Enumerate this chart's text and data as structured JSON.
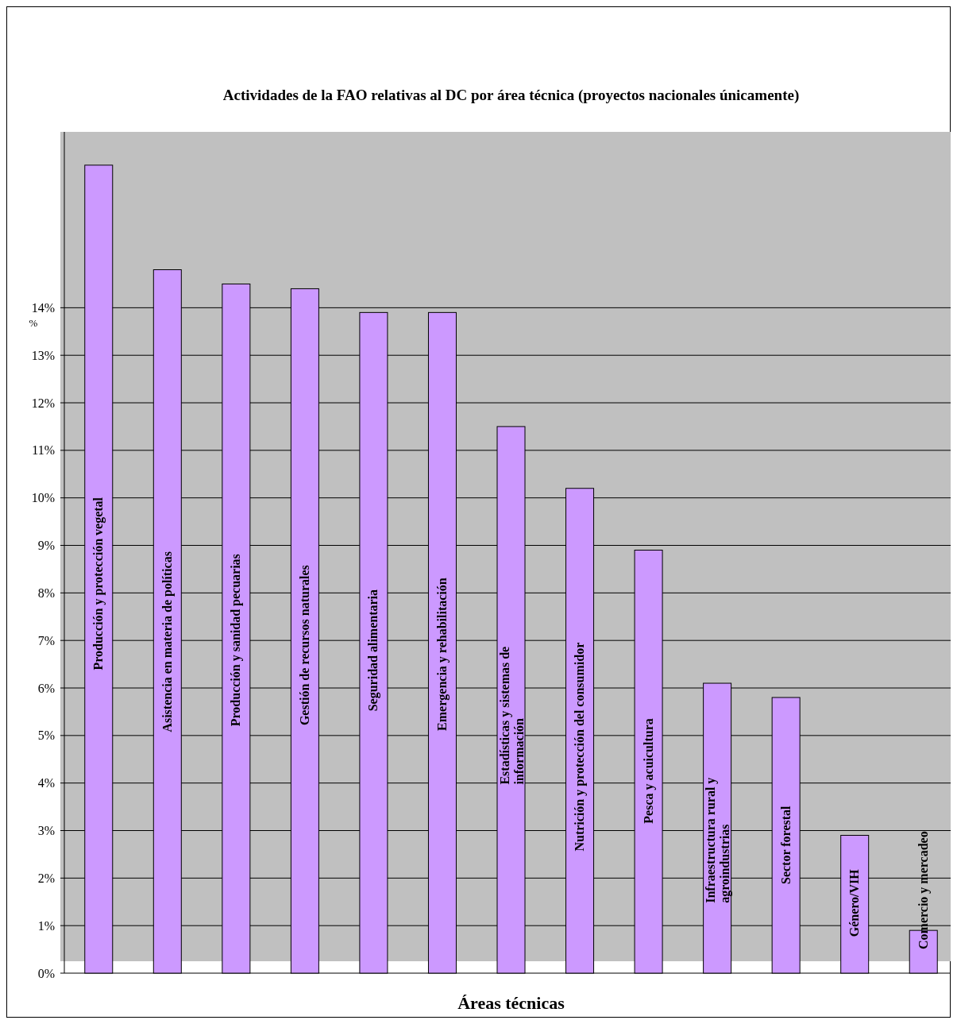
{
  "chart_data": {
    "type": "bar",
    "title": "Actividades de la FAO relativas al DC por área técnica (proyectos nacionales únicamente)",
    "xlabel": "Áreas técnicas",
    "ylabel": "%",
    "categories": [
      "Producción y protección vegetal",
      "Asistencia en materia de políticas",
      "Producción y sanidad pecuarias",
      "Gestión de recursos naturales",
      "Seguridad alimentaria",
      "Emergencia y rehabilitación",
      "Estadísticas y sistemas de información",
      "Nutrición y protección del consumidor",
      "Pesca y acuicultura",
      "Infraestructura rural y agroindustrias",
      "Sector forestal",
      "Género/VIH",
      "Comercio y mercadeo"
    ],
    "values": [
      17.0,
      14.8,
      14.5,
      14.4,
      13.9,
      13.9,
      11.5,
      10.2,
      8.9,
      6.1,
      5.8,
      2.9,
      0.9
    ],
    "color": "#cc99ff",
    "ylim": [
      0,
      17.7
    ],
    "yticks": [
      {
        "value": 0,
        "label": "0%"
      },
      {
        "value": 1,
        "label": "1%"
      },
      {
        "value": 2,
        "label": "2%"
      },
      {
        "value": 3,
        "label": "3%"
      },
      {
        "value": 4,
        "label": "4%"
      },
      {
        "value": 5,
        "label": "5%"
      },
      {
        "value": 6,
        "label": "6%"
      },
      {
        "value": 7,
        "label": "7%"
      },
      {
        "value": 8,
        "label": "8%"
      },
      {
        "value": 9,
        "label": "9%"
      },
      {
        "value": 10,
        "label": "10%"
      },
      {
        "value": 11,
        "label": "11%"
      },
      {
        "value": 12,
        "label": "12%"
      },
      {
        "value": 13,
        "label": "13%"
      },
      {
        "value": 14,
        "label": "14%"
      }
    ],
    "grid": "y"
  }
}
